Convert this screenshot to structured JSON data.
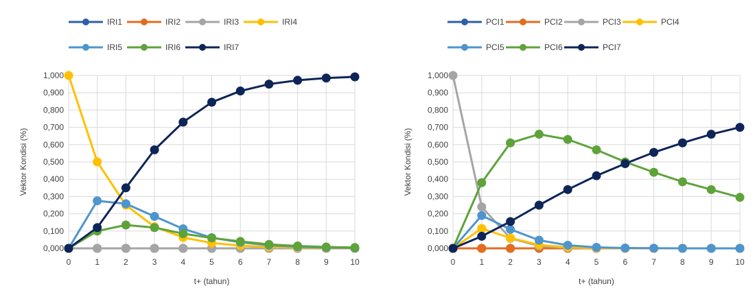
{
  "chart_data": [
    {
      "type": "line",
      "title": "",
      "xlabel": "t+ (tahun)",
      "ylabel": "Vektor Kondisi (%)",
      "xlim": [
        0,
        10
      ],
      "ylim": [
        0,
        1
      ],
      "x": [
        0,
        1,
        2,
        3,
        4,
        5,
        6,
        7,
        8,
        9,
        10
      ],
      "x_tick_labels": [
        "0",
        "1",
        "2",
        "3",
        "4",
        "5",
        "6",
        "7",
        "8",
        "9",
        "10"
      ],
      "y_tick_labels": [
        "0,000",
        "0,100",
        "0,200",
        "0,300",
        "0,400",
        "0,500",
        "0,600",
        "0,700",
        "0,800",
        "0,900",
        "1,000"
      ],
      "grid": true,
      "legend_position": "top",
      "series": [
        {
          "name": "IRI1",
          "color": "#2E5FA8",
          "values": [
            0,
            0,
            0,
            0,
            0,
            0,
            0,
            0,
            0,
            0,
            0
          ]
        },
        {
          "name": "IRI2",
          "color": "#E36C1F",
          "values": [
            0,
            0,
            0,
            0,
            0,
            0,
            0,
            0,
            0,
            0,
            0
          ]
        },
        {
          "name": "IRI3",
          "color": "#A5A5A5",
          "values": [
            0,
            0,
            0,
            0,
            0,
            0,
            0,
            0,
            0,
            0,
            0
          ]
        },
        {
          "name": "IRI4",
          "color": "#FFC000",
          "values": [
            1.0,
            0.5,
            0.25,
            0.125,
            0.063,
            0.031,
            0.016,
            0.008,
            0.004,
            0.002,
            0.001
          ]
        },
        {
          "name": "IRI5",
          "color": "#4E95CE",
          "values": [
            0,
            0.275,
            0.258,
            0.185,
            0.113,
            0.062,
            0.035,
            0.018,
            0.009,
            0.004,
            0.002
          ]
        },
        {
          "name": "IRI6",
          "color": "#5EA33A",
          "values": [
            0,
            0.1,
            0.135,
            0.12,
            0.085,
            0.06,
            0.04,
            0.023,
            0.014,
            0.008,
            0.005
          ]
        },
        {
          "name": "IRI7",
          "color": "#0E2557",
          "values": [
            0,
            0.12,
            0.35,
            0.57,
            0.73,
            0.845,
            0.91,
            0.95,
            0.972,
            0.985,
            0.992
          ]
        }
      ]
    },
    {
      "type": "line",
      "title": "",
      "xlabel": "t+ (tahun)",
      "ylabel": "Vektor Kondisi (%)",
      "xlim": [
        0,
        10
      ],
      "ylim": [
        0,
        1
      ],
      "x": [
        0,
        1,
        2,
        3,
        4,
        5,
        6,
        7,
        8,
        9,
        10
      ],
      "x_tick_labels": [
        "0",
        "1",
        "2",
        "3",
        "4",
        "5",
        "6",
        "7",
        "8",
        "9",
        "10"
      ],
      "y_tick_labels": [
        "0,000",
        "0,100",
        "0,200",
        "0,300",
        "0,400",
        "0,500",
        "0,600",
        "0,700",
        "0,800",
        "0,900",
        "1,000"
      ],
      "grid": true,
      "legend_position": "top",
      "series": [
        {
          "name": "PCI1",
          "color": "#2E5FA8",
          "values": [
            0,
            0,
            0,
            0,
            0,
            0,
            0,
            0,
            0,
            0,
            0
          ]
        },
        {
          "name": "PCI2",
          "color": "#E36C1F",
          "values": [
            0,
            0,
            0,
            0,
            0,
            0,
            0,
            0,
            0,
            0,
            0
          ]
        },
        {
          "name": "PCI3",
          "color": "#A5A5A5",
          "values": [
            1.0,
            0.24,
            0.058,
            0.014,
            0.003,
            0.001,
            0,
            0,
            0,
            0,
            0
          ]
        },
        {
          "name": "PCI4",
          "color": "#FFC000",
          "values": [
            0,
            0.115,
            0.06,
            0.02,
            0.006,
            0.002,
            0,
            0,
            0,
            0,
            0
          ]
        },
        {
          "name": "PCI5",
          "color": "#4E95CE",
          "values": [
            0,
            0.19,
            0.11,
            0.047,
            0.018,
            0.006,
            0.002,
            0.001,
            0,
            0,
            0
          ]
        },
        {
          "name": "PCI6",
          "color": "#5EA33A",
          "values": [
            0,
            0.38,
            0.61,
            0.66,
            0.63,
            0.57,
            0.5,
            0.44,
            0.385,
            0.34,
            0.295
          ]
        },
        {
          "name": "PCI7",
          "color": "#0E2557",
          "values": [
            0,
            0.07,
            0.155,
            0.25,
            0.34,
            0.42,
            0.49,
            0.555,
            0.61,
            0.66,
            0.7
          ]
        }
      ]
    }
  ]
}
